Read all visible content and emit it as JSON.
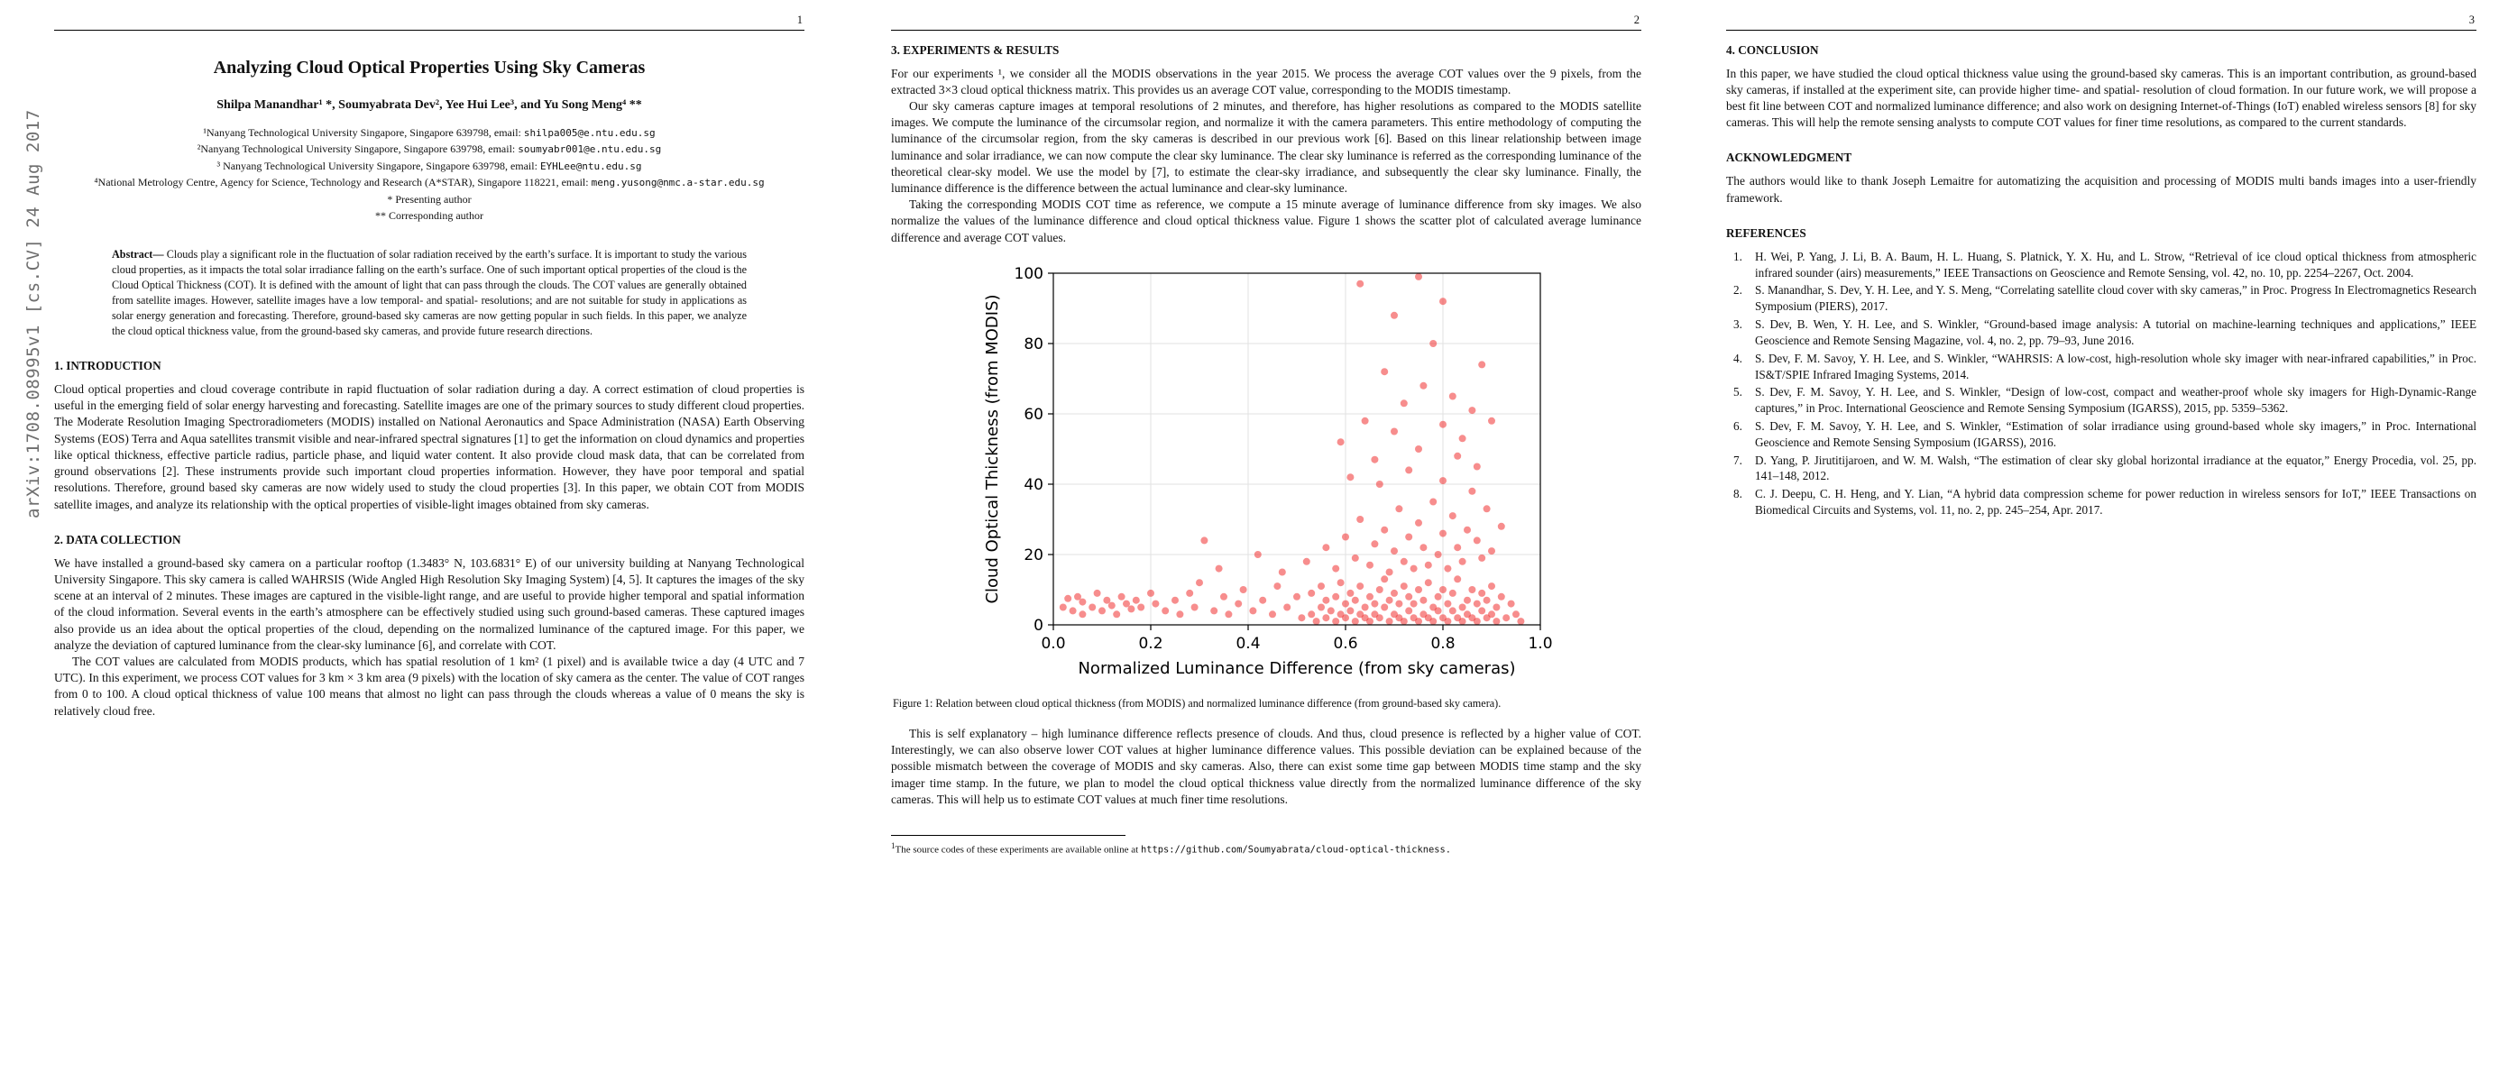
{
  "arxiv_banner": "arXiv:1708.08995v1  [cs.CV]  24 Aug 2017",
  "page1": {
    "page_number": "1",
    "title": "Analyzing Cloud Optical Properties Using Sky Cameras",
    "authors": "Shilpa Manandhar¹ *, Soumyabrata Dev², Yee Hui Lee³, and Yu Song Meng⁴ **",
    "affiliations": [
      {
        "text": "¹Nanyang Technological University Singapore, Singapore 639798, email: ",
        "email": "shilpa005@e.ntu.edu.sg"
      },
      {
        "text": "²Nanyang Technological University Singapore, Singapore 639798, email: ",
        "email": "soumyabr001@e.ntu.edu.sg"
      },
      {
        "text": "³ Nanyang Technological University Singapore, Singapore 639798, email: ",
        "email": "EYHLee@ntu.edu.sg"
      },
      {
        "text": "⁴National Metrology Centre, Agency for Science, Technology and Research (A*STAR), Singapore 118221, email: ",
        "email": "meng.yusong@nmc.a-star.edu.sg"
      }
    ],
    "author_notes": [
      "* Presenting author",
      "** Corresponding author"
    ],
    "abstract_label": "Abstract— ",
    "abstract_text": "Clouds play a significant role in the fluctuation of solar radiation received by the earth’s surface. It is important to study the various cloud properties, as it impacts the total solar irradiance falling on the earth’s surface. One of such important optical properties of the cloud is the Cloud Optical Thickness (COT). It is defined with the amount of light that can pass through the clouds. The COT values are generally obtained from satellite images. However, satellite images have a low temporal- and spatial- resolutions; and are not suitable for study in applications as solar energy generation and forecasting. Therefore, ground-based sky cameras are now getting popular in such fields. In this paper, we analyze the cloud optical thickness value, from the ground-based sky cameras, and provide future research directions.",
    "sections": [
      {
        "heading": "1. INTRODUCTION",
        "paragraphs": [
          "Cloud optical properties and cloud coverage contribute in rapid fluctuation of solar radiation during a day. A correct estimation of cloud properties is useful in the emerging field of solar energy harvesting and forecasting. Satellite images are one of the primary sources to study different cloud properties. The Moderate Resolution Imaging Spectroradiometers (MODIS) installed on National Aeronautics and Space Administration (NASA) Earth Observing Systems (EOS) Terra and Aqua satellites transmit visible and near-infrared spectral signatures [1] to get the information on cloud dynamics and properties like optical thickness, effective particle radius, particle phase, and liquid water content. It also provide cloud mask data, that can be correlated from ground observations [2]. These instruments provide such important cloud properties information. However, they have poor temporal and spatial resolutions. Therefore, ground based sky cameras are now widely used to study the cloud properties [3]. In this paper, we obtain COT from MODIS satellite images, and analyze its relationship with the optical properties of visible-light images obtained from sky cameras."
        ]
      },
      {
        "heading": "2. DATA COLLECTION",
        "paragraphs": [
          "We have installed a ground-based sky camera on a particular rooftop (1.3483° N, 103.6831° E) of our university building at Nanyang Technological University Singapore. This sky camera is called WAHRSIS (Wide Angled High Resolution Sky Imaging System) [4, 5]. It captures the images of the sky scene at an interval of 2 minutes. These images are captured in the visible-light range, and are useful to provide higher temporal and spatial information of the cloud information. Several events in the earth’s atmosphere can be effectively studied using such ground-based cameras. These captured images also provide us an idea about the optical properties of the cloud, depending on the normalized luminance of the captured image. For this paper, we analyze the deviation of captured luminance from the clear-sky luminance [6], and correlate with COT.",
          "The COT values are calculated from MODIS products, which has spatial resolution of 1 km² (1 pixel) and is available twice a day (4 UTC and 7 UTC). In this experiment, we process COT values for 3 km × 3 km area (9 pixels) with the location of sky camera as the center. The value of COT ranges from 0 to 100. A cloud optical thickness of value 100 means that almost no light can pass through the clouds whereas a value of 0 means the sky is relatively cloud free."
        ]
      }
    ]
  },
  "page2": {
    "page_number": "2",
    "section_heading": "3. EXPERIMENTS & RESULTS",
    "paragraphs_before_figure": [
      "For our experiments ¹, we consider all the MODIS observations in the year 2015. We process the average COT values over the 9 pixels, from the extracted 3×3 cloud optical thickness matrix. This provides us an average COT value, corresponding to the MODIS timestamp.",
      "Our sky cameras capture images at temporal resolutions of 2 minutes, and therefore, has higher resolutions as compared to the MODIS satellite images. We compute the luminance of the circumsolar region, and normalize it with the camera parameters. This entire methodology of computing the luminance of the circumsolar region, from the sky cameras is described in our previous work [6]. Based on this linear relationship between image luminance and solar irradiance, we can now compute the clear sky luminance. The clear sky luminance is referred as the corresponding luminance of the theoretical clear-sky model. We use the model by [7], to estimate the clear-sky irradiance, and subsequently the clear sky luminance. Finally, the luminance difference is the difference between the actual luminance and clear-sky luminance.",
      "Taking the corresponding MODIS COT time as reference, we compute a 15 minute average of luminance difference from sky images. We also normalize the values of the luminance difference and cloud optical thickness value. Figure 1 shows the scatter plot of calculated average luminance difference and average COT values."
    ],
    "figure_caption": "Figure 1: Relation between cloud optical thickness (from MODIS) and normalized luminance difference (from ground-based sky camera).",
    "paragraph_after_figure": "This is self explanatory – high luminance difference reflects presence of clouds. And thus, cloud presence is reflected by a higher value of COT. Interestingly, we can also observe lower COT values at higher luminance difference values. This possible deviation can be explained because of the possible mismatch between the coverage of MODIS and sky cameras. Also, there can exist some time gap between MODIS time stamp and the sky imager time stamp. In the future, we plan to model the cloud optical thickness value directly from the normalized luminance difference of the sky cameras. This will help us to estimate COT values at much finer time resolutions.",
    "footnote": {
      "marker": "1",
      "text": "The source codes of these experiments are available online at ",
      "url": "https://github.com/Soumyabrata/cloud-optical-thickness."
    }
  },
  "page3": {
    "page_number": "3",
    "sections": [
      {
        "heading": "4. CONCLUSION",
        "paragraphs": [
          "In this paper, we have studied the cloud optical thickness value using the ground-based sky cameras. This is an important contribution, as ground-based sky cameras, if installed at the experiment site, can provide higher time- and spatial- resolution of cloud formation. In our future work, we will propose a best fit line between COT and normalized luminance difference; and also work on designing Internet-of-Things (IoT) enabled wireless sensors [8] for sky cameras. This will help the remote sensing analysts to compute COT values for finer time resolutions, as compared to the current standards."
        ]
      },
      {
        "heading": "ACKNOWLEDGMENT",
        "paragraphs": [
          "The authors would like to thank Joseph Lemaitre for automatizing the acquisition and processing of MODIS multi bands images into a user-friendly framework."
        ]
      }
    ],
    "references_heading": "REFERENCES",
    "references": [
      {
        "num": "1.",
        "text": "H. Wei, P. Yang, J. Li, B. A. Baum, H. L. Huang, S. Platnick, Y. X. Hu, and L. Strow, “Retrieval of ice cloud optical thickness from atmospheric infrared sounder (airs) measurements,” IEEE Transactions on Geoscience and Remote Sensing, vol. 42, no. 10, pp. 2254–2267, Oct. 2004."
      },
      {
        "num": "2.",
        "text": "S. Manandhar, S. Dev, Y. H. Lee, and Y. S. Meng, “Correlating satellite cloud cover with sky cameras,” in Proc. Progress In Electromagnetics Research Symposium (PIERS), 2017."
      },
      {
        "num": "3.",
        "text": "S. Dev, B. Wen, Y. H. Lee, and S. Winkler, “Ground-based image analysis: A tutorial on machine-learning techniques and applications,” IEEE Geoscience and Remote Sensing Magazine, vol. 4, no. 2, pp. 79–93, June 2016."
      },
      {
        "num": "4.",
        "text": "S. Dev, F. M. Savoy, Y. H. Lee, and S. Winkler, “WAHRSIS: A low-cost, high-resolution whole sky imager with near-infrared capabilities,” in Proc. IS&T/SPIE Infrared Imaging Systems, 2014."
      },
      {
        "num": "5.",
        "text": "S. Dev, F. M. Savoy, Y. H. Lee, and S. Winkler, “Design of low-cost, compact and weather-proof whole sky imagers for High-Dynamic-Range captures,” in Proc. International Geoscience and Remote Sensing Symposium (IGARSS), 2015, pp. 5359–5362."
      },
      {
        "num": "6.",
        "text": "S. Dev, F. M. Savoy, Y. H. Lee, and S. Winkler, “Estimation of solar irradiance using ground-based whole sky imagers,” in Proc. International Geoscience and Remote Sensing Symposium (IGARSS), 2016."
      },
      {
        "num": "7.",
        "text": "D. Yang, P. Jirutitijaroen, and W. M. Walsh, “The estimation of clear sky global horizontal irradiance at the equator,” Energy Procedia, vol. 25, pp. 141–148, 2012."
      },
      {
        "num": "8.",
        "text": "C. J. Deepu, C. H. Heng, and Y. Lian, “A hybrid data compression scheme for power reduction in wireless sensors for IoT,” IEEE Transactions on Biomedical Circuits and Systems, vol. 11, no. 2, pp. 245–254, Apr. 2017."
      }
    ]
  },
  "chart_data": {
    "type": "scatter",
    "xlabel": "Normalized Luminance Difference (from sky cameras)",
    "ylabel": "Cloud Optical Thickness (from MODIS)",
    "xlim": [
      0.0,
      1.0
    ],
    "ylim": [
      0,
      100
    ],
    "xticks": [
      0.0,
      0.2,
      0.4,
      0.6,
      0.8,
      1.0
    ],
    "xtick_labels": [
      "0.0",
      "0.2",
      "0.4",
      "0.6",
      "0.8",
      "1.0"
    ],
    "yticks": [
      0,
      20,
      40,
      60,
      80,
      100
    ],
    "ytick_labels": [
      "0",
      "20",
      "40",
      "60",
      "80",
      "100"
    ],
    "grid": true,
    "grid_color": "#e2e2e2",
    "marker_color": "#f03030",
    "marker_opacity": 0.55,
    "points": [
      [
        0.02,
        5
      ],
      [
        0.03,
        7.5
      ],
      [
        0.04,
        4
      ],
      [
        0.05,
        8
      ],
      [
        0.06,
        3
      ],
      [
        0.06,
        6.5
      ],
      [
        0.08,
        5
      ],
      [
        0.09,
        9
      ],
      [
        0.1,
        4
      ],
      [
        0.11,
        7
      ],
      [
        0.12,
        5.5
      ],
      [
        0.13,
        3
      ],
      [
        0.14,
        8
      ],
      [
        0.15,
        6
      ],
      [
        0.16,
        4.5
      ],
      [
        0.17,
        7
      ],
      [
        0.18,
        5
      ],
      [
        0.2,
        9
      ],
      [
        0.21,
        6
      ],
      [
        0.23,
        4
      ],
      [
        0.25,
        7
      ],
      [
        0.26,
        3
      ],
      [
        0.28,
        9
      ],
      [
        0.29,
        5
      ],
      [
        0.3,
        12
      ],
      [
        0.31,
        24
      ],
      [
        0.33,
        4
      ],
      [
        0.34,
        16
      ],
      [
        0.35,
        8
      ],
      [
        0.36,
        3
      ],
      [
        0.38,
        6
      ],
      [
        0.39,
        10
      ],
      [
        0.41,
        4
      ],
      [
        0.42,
        20
      ],
      [
        0.43,
        7
      ],
      [
        0.45,
        3
      ],
      [
        0.46,
        11
      ],
      [
        0.47,
        15
      ],
      [
        0.48,
        5
      ],
      [
        0.5,
        8
      ],
      [
        0.51,
        2
      ],
      [
        0.52,
        18
      ],
      [
        0.53,
        3
      ],
      [
        0.53,
        9
      ],
      [
        0.54,
        1
      ],
      [
        0.55,
        5
      ],
      [
        0.55,
        11
      ],
      [
        0.56,
        2
      ],
      [
        0.56,
        7
      ],
      [
        0.57,
        4
      ],
      [
        0.58,
        1
      ],
      [
        0.58,
        8
      ],
      [
        0.59,
        3
      ],
      [
        0.59,
        12
      ],
      [
        0.6,
        6
      ],
      [
        0.6,
        2
      ],
      [
        0.61,
        9
      ],
      [
        0.61,
        4
      ],
      [
        0.62,
        1
      ],
      [
        0.62,
        7
      ],
      [
        0.63,
        3
      ],
      [
        0.63,
        11
      ],
      [
        0.64,
        5
      ],
      [
        0.64,
        2
      ],
      [
        0.65,
        8
      ],
      [
        0.65,
        1
      ],
      [
        0.66,
        6
      ],
      [
        0.66,
        3
      ],
      [
        0.67,
        10
      ],
      [
        0.67,
        2
      ],
      [
        0.68,
        5
      ],
      [
        0.68,
        13
      ],
      [
        0.69,
        1
      ],
      [
        0.69,
        7
      ],
      [
        0.7,
        3
      ],
      [
        0.7,
        9
      ],
      [
        0.71,
        2
      ],
      [
        0.71,
        6
      ],
      [
        0.72,
        1
      ],
      [
        0.72,
        11
      ],
      [
        0.73,
        4
      ],
      [
        0.73,
        8
      ],
      [
        0.74,
        2
      ],
      [
        0.74,
        6
      ],
      [
        0.75,
        1
      ],
      [
        0.75,
        10
      ],
      [
        0.76,
        3
      ],
      [
        0.76,
        7
      ],
      [
        0.77,
        2
      ],
      [
        0.77,
        12
      ],
      [
        0.78,
        5
      ],
      [
        0.78,
        1
      ],
      [
        0.79,
        8
      ],
      [
        0.79,
        4
      ],
      [
        0.8,
        2
      ],
      [
        0.8,
        10
      ],
      [
        0.81,
        6
      ],
      [
        0.81,
        1
      ],
      [
        0.82,
        4
      ],
      [
        0.82,
        9
      ],
      [
        0.83,
        2
      ],
      [
        0.83,
        13
      ],
      [
        0.84,
        5
      ],
      [
        0.84,
        1
      ],
      [
        0.85,
        7
      ],
      [
        0.85,
        3
      ],
      [
        0.86,
        10
      ],
      [
        0.86,
        2
      ],
      [
        0.87,
        6
      ],
      [
        0.87,
        1
      ],
      [
        0.88,
        4
      ],
      [
        0.88,
        9
      ],
      [
        0.89,
        2
      ],
      [
        0.89,
        7
      ],
      [
        0.9,
        3
      ],
      [
        0.9,
        11
      ],
      [
        0.91,
        5
      ],
      [
        0.91,
        1
      ],
      [
        0.92,
        8
      ],
      [
        0.93,
        2
      ],
      [
        0.94,
        6
      ],
      [
        0.95,
        3
      ],
      [
        0.96,
        1
      ],
      [
        0.56,
        22
      ],
      [
        0.58,
        16
      ],
      [
        0.6,
        25
      ],
      [
        0.61,
        42
      ],
      [
        0.62,
        19
      ],
      [
        0.63,
        30
      ],
      [
        0.65,
        17
      ],
      [
        0.66,
        23
      ],
      [
        0.67,
        40
      ],
      [
        0.68,
        27
      ],
      [
        0.69,
        15
      ],
      [
        0.7,
        21
      ],
      [
        0.71,
        33
      ],
      [
        0.72,
        18
      ],
      [
        0.73,
        25
      ],
      [
        0.73,
        44
      ],
      [
        0.74,
        16
      ],
      [
        0.75,
        29
      ],
      [
        0.76,
        22
      ],
      [
        0.77,
        17
      ],
      [
        0.78,
        35
      ],
      [
        0.79,
        20
      ],
      [
        0.8,
        26
      ],
      [
        0.8,
        41
      ],
      [
        0.81,
        16
      ],
      [
        0.82,
        31
      ],
      [
        0.83,
        22
      ],
      [
        0.84,
        18
      ],
      [
        0.85,
        27
      ],
      [
        0.86,
        38
      ],
      [
        0.87,
        24
      ],
      [
        0.87,
        45
      ],
      [
        0.88,
        19
      ],
      [
        0.89,
        33
      ],
      [
        0.9,
        21
      ],
      [
        0.92,
        28
      ],
      [
        0.59,
        52
      ],
      [
        0.64,
        58
      ],
      [
        0.66,
        47
      ],
      [
        0.68,
        72
      ],
      [
        0.7,
        55
      ],
      [
        0.72,
        63
      ],
      [
        0.75,
        50
      ],
      [
        0.76,
        68
      ],
      [
        0.78,
        80
      ],
      [
        0.8,
        57
      ],
      [
        0.82,
        65
      ],
      [
        0.83,
        48
      ],
      [
        0.84,
        53
      ],
      [
        0.86,
        61
      ],
      [
        0.88,
        74
      ],
      [
        0.9,
        58
      ],
      [
        0.63,
        97
      ],
      [
        0.7,
        88
      ],
      [
        0.75,
        99
      ],
      [
        0.8,
        92
      ]
    ]
  }
}
